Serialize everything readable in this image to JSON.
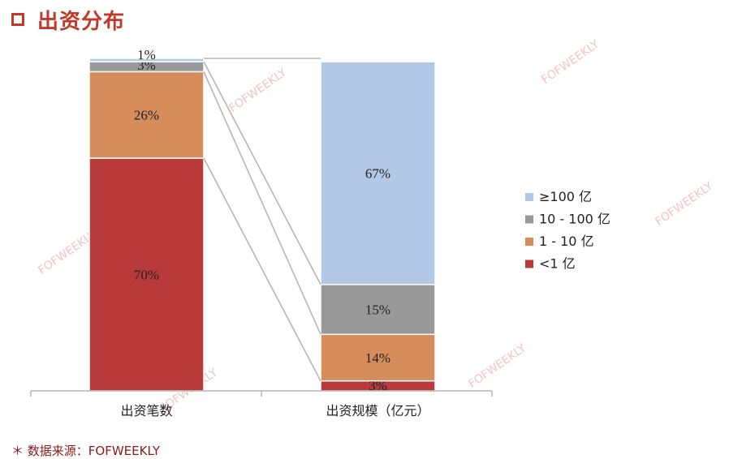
{
  "header": {
    "title": "出资分布"
  },
  "footer": {
    "source": "＊ 数据来源：FOFWEEKLY"
  },
  "watermark": "FOFWEEKLY",
  "chart_data": {
    "type": "bar",
    "stacked": true,
    "percent": true,
    "title": "",
    "xlabel": "",
    "ylabel": "",
    "ylim": [
      0,
      100
    ],
    "categories": [
      "出资笔数",
      "出资规模（亿元）"
    ],
    "series": [
      {
        "name": "<1 亿",
        "color": "#b83a3a",
        "values": [
          70,
          3
        ],
        "labels": [
          "70%",
          "3%"
        ]
      },
      {
        "name": "1 - 10 亿",
        "color": "#d78c5b",
        "values": [
          26,
          14
        ],
        "labels": [
          "26%",
          "14%"
        ]
      },
      {
        "name": "10 - 100 亿",
        "color": "#999999",
        "values": [
          3,
          15
        ],
        "labels": [
          "3%",
          "15%"
        ]
      },
      {
        "name": "≥100 亿",
        "color": "#b3c8e6",
        "values": [
          1,
          67
        ],
        "labels": [
          "1%",
          "67%"
        ]
      }
    ],
    "legend": {
      "position": "right",
      "order": [
        "≥100 亿",
        "10 - 100 亿",
        "1 - 10 亿",
        "<1 亿"
      ]
    }
  }
}
